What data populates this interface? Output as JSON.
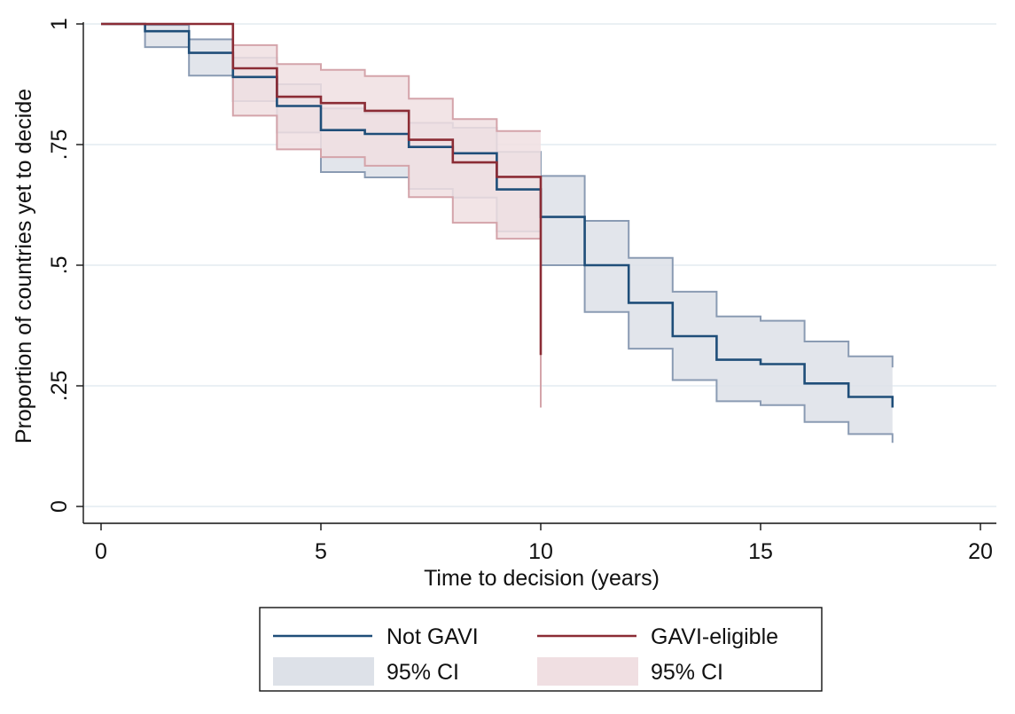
{
  "chart_data": {
    "type": "line",
    "title": "",
    "xlabel": "Time to decision (years)",
    "ylabel": "Proportion of countries yet to decide",
    "xlim": [
      0,
      20
    ],
    "ylim": [
      0,
      1
    ],
    "x_ticks": [
      0,
      5,
      10,
      15,
      20
    ],
    "x_tick_labels": [
      "0",
      "5",
      "10",
      "15",
      "20"
    ],
    "y_ticks": [
      0,
      0.25,
      0.5,
      0.75,
      1
    ],
    "y_tick_labels": [
      "0",
      ".25",
      ".5",
      ".75",
      "1"
    ],
    "grid": "horizontal",
    "legend_position": "bottom",
    "colors": {
      "not_gavi": "#1f4e79",
      "gavi_eligible": "#8b2c35",
      "not_gavi_ci": "#dde1e8",
      "gavi_eligible_ci": "#f0dfe2",
      "not_gavi_ci_edge": "#8a9bb3",
      "gavi_eligible_ci_edge": "#d4a4aa",
      "grid": "#e3ecf1"
    },
    "legend": [
      {
        "key": "not_gavi",
        "label": "Not GAVI",
        "kind": "line"
      },
      {
        "key": "gavi_eligible",
        "label": "GAVI-eligible",
        "kind": "line"
      },
      {
        "key": "not_gavi_ci",
        "label": "95% CI",
        "kind": "area"
      },
      {
        "key": "gavi_eligible_ci",
        "label": "95% CI",
        "kind": "area"
      }
    ],
    "series": [
      {
        "name": "Not GAVI",
        "key": "not_gavi",
        "step": "post",
        "x": [
          0,
          1,
          2,
          3,
          4,
          5,
          6,
          7,
          8,
          9,
          10,
          11,
          12,
          13,
          14,
          15,
          16,
          17,
          18
        ],
        "y": [
          1.0,
          0.985,
          0.94,
          0.89,
          0.83,
          0.78,
          0.772,
          0.745,
          0.732,
          0.657,
          0.6,
          0.5,
          0.422,
          0.353,
          0.304,
          0.295,
          0.255,
          0.227,
          0.205
        ],
        "ci_upper": [
          1.0,
          0.998,
          0.968,
          0.93,
          0.875,
          0.825,
          0.815,
          0.795,
          0.785,
          0.735,
          0.685,
          0.592,
          0.515,
          0.445,
          0.394,
          0.385,
          0.342,
          0.311,
          0.288
        ],
        "ci_lower": [
          1.0,
          0.952,
          0.893,
          0.84,
          0.775,
          0.693,
          0.682,
          0.658,
          0.64,
          0.57,
          0.5,
          0.403,
          0.327,
          0.262,
          0.218,
          0.21,
          0.175,
          0.15,
          0.132
        ]
      },
      {
        "name": "GAVI-eligible",
        "key": "gavi_eligible",
        "step": "post",
        "x": [
          0,
          1,
          2,
          3,
          4,
          5,
          6,
          7,
          8,
          9,
          10
        ],
        "y": [
          1.0,
          1.0,
          1.0,
          0.908,
          0.849,
          0.836,
          0.82,
          0.76,
          0.713,
          0.683,
          0.314
        ],
        "ci_upper": [
          1.0,
          1.0,
          1.0,
          0.956,
          0.917,
          0.905,
          0.892,
          0.845,
          0.803,
          0.778,
          0.778
        ],
        "ci_lower": [
          1.0,
          1.0,
          1.0,
          0.81,
          0.74,
          0.724,
          0.706,
          0.641,
          0.588,
          0.555,
          0.205
        ]
      }
    ]
  }
}
